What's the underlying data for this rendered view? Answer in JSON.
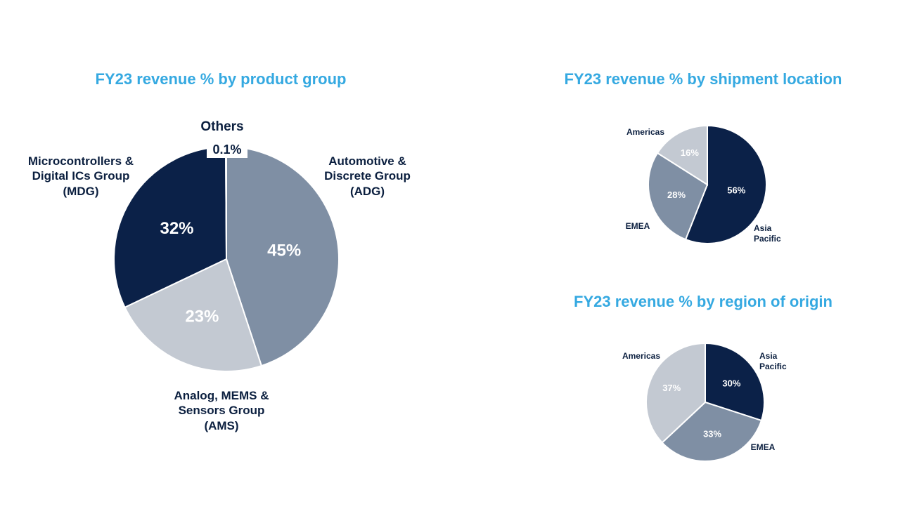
{
  "colors": {
    "title": "#35a9e1",
    "navy": "#0b2148",
    "slate": "#7f8fa4",
    "light": "#c3c9d2",
    "label": "#0b1f3f"
  },
  "chart_data": [
    {
      "type": "pie",
      "title": "FY23 revenue % by product group",
      "slices": [
        {
          "label": "Automotive & Discrete Group (ADG)",
          "value": 45,
          "value_label": "45%",
          "color": "#7f8fa4"
        },
        {
          "label": "Analog, MEMS & Sensors Group (AMS)",
          "value": 23,
          "value_label": "23%",
          "color": "#c3c9d2"
        },
        {
          "label": "Microcontrollers & Digital ICs Group (MDG)",
          "value": 32,
          "value_label": "32%",
          "color": "#0b2148"
        },
        {
          "label": "Others",
          "value": 0.1,
          "value_label": "0.1%",
          "color": "#0b2148"
        }
      ]
    },
    {
      "type": "pie",
      "title": "FY23 revenue % by shipment location",
      "slices": [
        {
          "label": "Asia Pacific",
          "value": 56,
          "value_label": "56%",
          "color": "#0b2148"
        },
        {
          "label": "EMEA",
          "value": 28,
          "value_label": "28%",
          "color": "#7f8fa4"
        },
        {
          "label": "Americas",
          "value": 16,
          "value_label": "16%",
          "color": "#c3c9d2"
        }
      ]
    },
    {
      "type": "pie",
      "title": "FY23 revenue % by region of origin",
      "slices": [
        {
          "label": "Asia Pacific",
          "value": 30,
          "value_label": "30%",
          "color": "#0b2148"
        },
        {
          "label": "EMEA",
          "value": 33,
          "value_label": "33%",
          "color": "#7f8fa4"
        },
        {
          "label": "Americas",
          "value": 37,
          "value_label": "37%",
          "color": "#c3c9d2"
        }
      ]
    }
  ]
}
